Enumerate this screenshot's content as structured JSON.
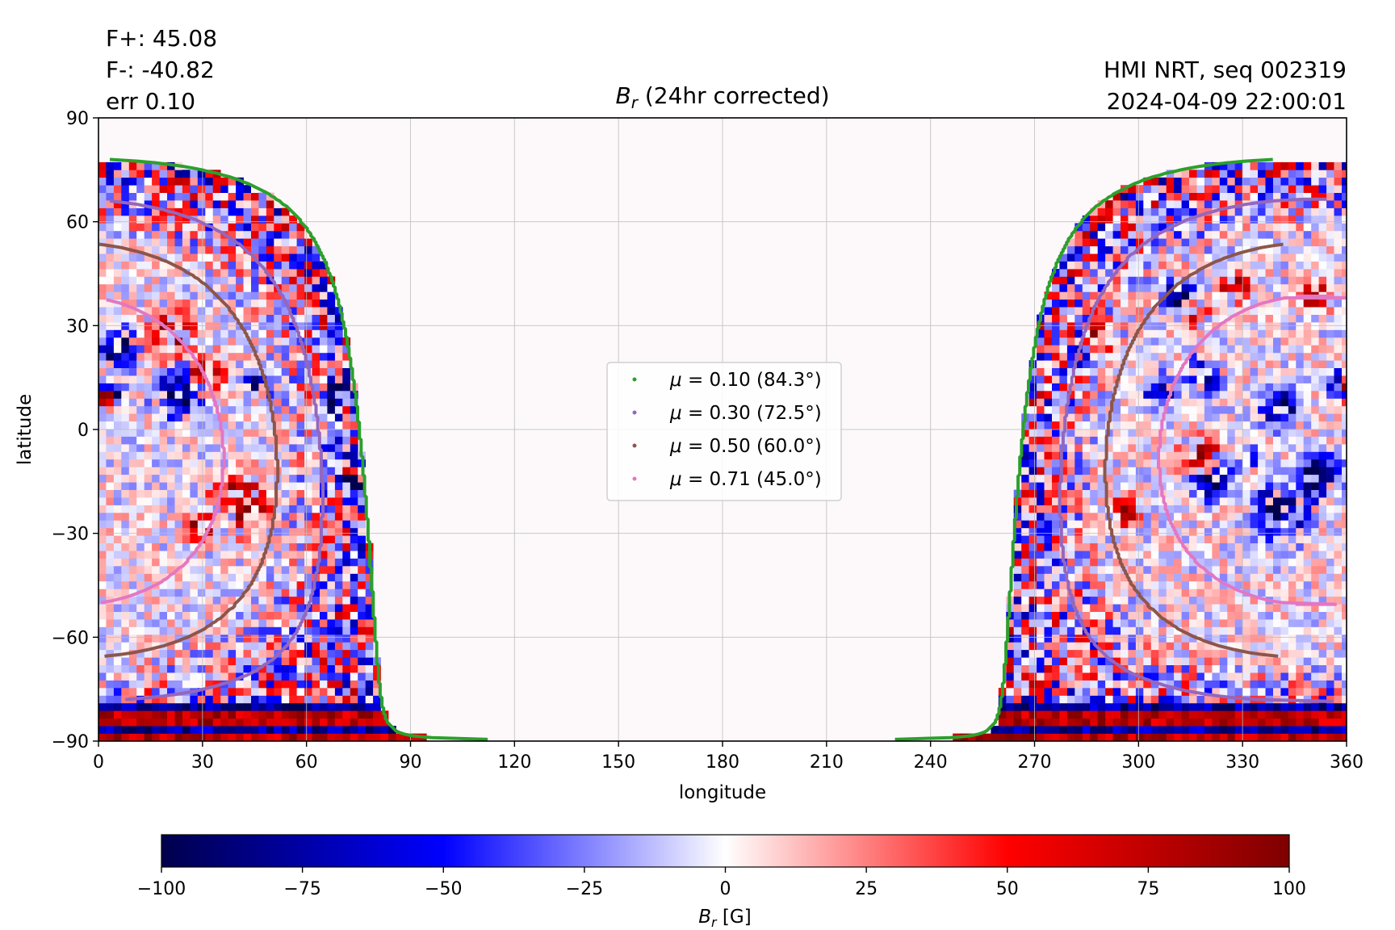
{
  "header": {
    "flux_pos": "F+: 45.08",
    "flux_neg": "F-: -40.82",
    "err": "err 0.10",
    "instrument": "HMI NRT, seq 002319",
    "timestamp": "2024-04-09 22:00:01"
  },
  "chart_data": {
    "type": "heatmap",
    "title_symbol": "B",
    "title_sub": "r",
    "title_rest": " (24hr corrected)",
    "xlabel": "longitude",
    "ylabel": "latitude",
    "xlim": [
      0,
      360
    ],
    "ylim": [
      -90,
      90
    ],
    "xticks": [
      0,
      30,
      60,
      90,
      120,
      150,
      180,
      210,
      240,
      270,
      300,
      330,
      360
    ],
    "yticks": [
      90,
      60,
      30,
      0,
      -30,
      -60,
      -90
    ],
    "ytick_labels": [
      "90",
      "60",
      "30",
      "0",
      "−30",
      "−60",
      "−90"
    ],
    "grid": true,
    "visible_disk_longitudes": {
      "left_limb_max": 81,
      "right_limb_min": 262
    },
    "legend_position": "center",
    "legend": [
      {
        "label_prefix": "μ = ",
        "value": "0.10",
        "angle": "(84.3°)",
        "color": "#2ca02c",
        "mu": 0.1,
        "angle_deg": 84.3
      },
      {
        "label_prefix": "μ = ",
        "value": "0.30",
        "angle": "(72.5°)",
        "color": "#9467bd",
        "mu": 0.3,
        "angle_deg": 72.5
      },
      {
        "label_prefix": "μ = ",
        "value": "0.50",
        "angle": "(60.0°)",
        "color": "#8c564b",
        "mu": 0.5,
        "angle_deg": 60.0
      },
      {
        "label_prefix": "μ = ",
        "value": "0.71",
        "angle": "(45.0°)",
        "color": "#e377c2",
        "mu": 0.71,
        "angle_deg": 45.0
      }
    ],
    "colorbar": {
      "ticks": [
        -100,
        -75,
        -50,
        -25,
        0,
        25,
        50,
        75,
        100
      ],
      "tick_labels": [
        "−100",
        "−75",
        "−50",
        "−25",
        "0",
        "25",
        "50",
        "75",
        "100"
      ],
      "label_symbol": "B",
      "label_sub": "r",
      "label_rest": " [G]",
      "range": [
        -100,
        100
      ],
      "colors": [
        "#00004c",
        "#0000ff",
        "#ffffff",
        "#ff0000",
        "#7f0000"
      ]
    }
  }
}
